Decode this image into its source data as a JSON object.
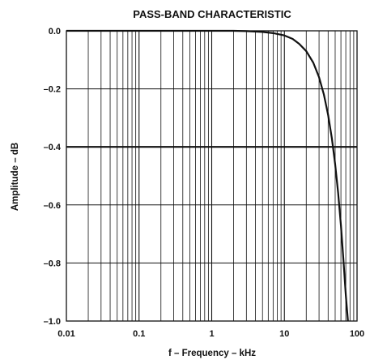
{
  "chart_data": {
    "type": "line",
    "title": "PASS-BAND CHARACTERISTIC",
    "xlabel": "f – Frequency – kHz",
    "ylabel": "Amplitude – dB",
    "x_scale": "log",
    "xlim": [
      0.01,
      100
    ],
    "ylim": [
      -1.0,
      0.0
    ],
    "x_ticks": [
      {
        "value": 0.01,
        "label": "0.01"
      },
      {
        "value": 0.1,
        "label": "0.1"
      },
      {
        "value": 1,
        "label": "1"
      },
      {
        "value": 10,
        "label": "10"
      },
      {
        "value": 100,
        "label": "100"
      }
    ],
    "y_ticks": [
      {
        "value": 0.0,
        "label": "0.0"
      },
      {
        "value": -0.2,
        "label": "–0.2"
      },
      {
        "value": -0.4,
        "label": "–0.4"
      },
      {
        "value": -0.6,
        "label": "–0.6"
      },
      {
        "value": -0.8,
        "label": "–0.8"
      },
      {
        "value": -1.0,
        "label": "–1.0"
      }
    ],
    "grid": true,
    "series": [
      {
        "x": [
          0.01,
          0.1,
          1,
          2,
          3,
          5,
          7,
          10,
          13,
          16,
          20,
          25,
          30,
          35,
          40,
          45,
          50,
          55,
          60,
          65,
          70,
          75
        ],
        "y": [
          0.0,
          0.0,
          0.0,
          0.0,
          -0.001,
          -0.004,
          -0.008,
          -0.016,
          -0.028,
          -0.045,
          -0.07,
          -0.11,
          -0.16,
          -0.22,
          -0.29,
          -0.37,
          -0.46,
          -0.56,
          -0.67,
          -0.79,
          -0.91,
          -1.0
        ]
      }
    ]
  }
}
